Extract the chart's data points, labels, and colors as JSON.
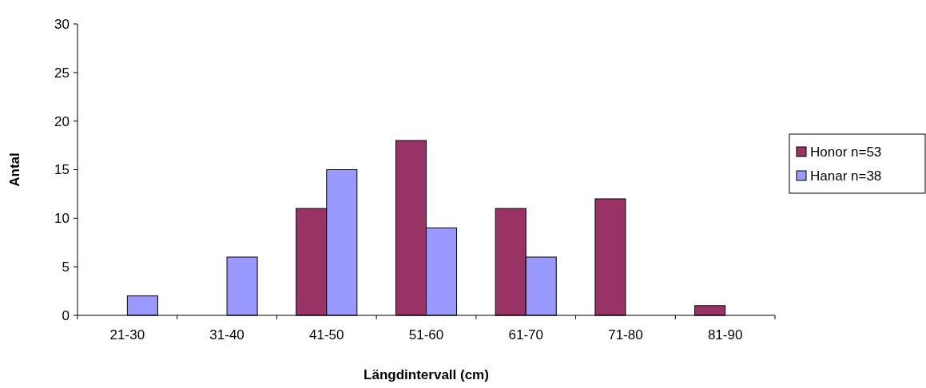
{
  "chart_data": {
    "type": "bar",
    "xlabel": "Längdintervall (cm)",
    "ylabel": "Antal",
    "categories": [
      "21-30",
      "31-40",
      "41-50",
      "51-60",
      "61-70",
      "71-80",
      "81-90"
    ],
    "series": [
      {
        "name": "Honor n=53",
        "color": "#993366",
        "values": [
          0,
          0,
          11,
          18,
          11,
          12,
          1
        ]
      },
      {
        "name": "Hanar n=38",
        "color": "#9999ff",
        "values": [
          2,
          6,
          15,
          9,
          6,
          0,
          0
        ]
      }
    ],
    "ylim": [
      0,
      30
    ],
    "yticks": [
      0,
      5,
      10,
      15,
      20,
      25,
      30
    ],
    "grid": false,
    "legend": "right"
  }
}
